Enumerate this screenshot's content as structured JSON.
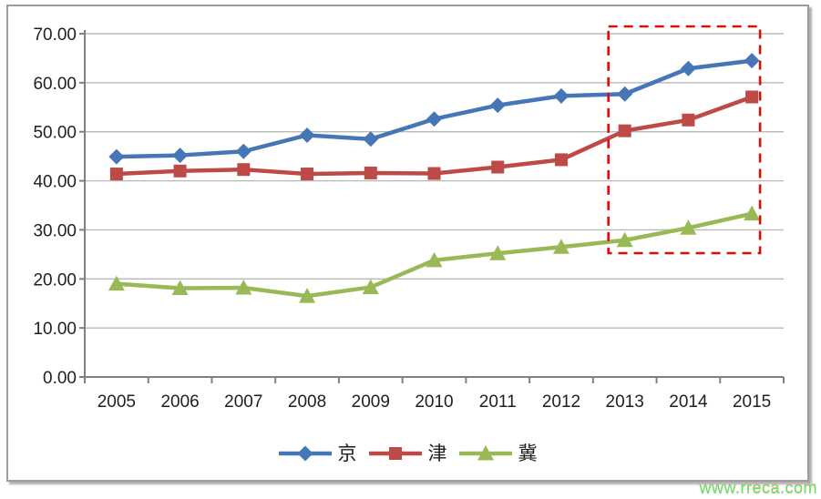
{
  "watermark": {
    "text": "www.rreca.com",
    "color": "#5fe45f"
  },
  "legend": {
    "items": [
      {
        "label": "京",
        "marker": "diamond"
      },
      {
        "label": "津",
        "marker": "square"
      },
      {
        "label": "冀",
        "marker": "triangle"
      }
    ]
  },
  "chart_data": {
    "type": "line",
    "title": "",
    "xlabel": "",
    "ylabel": "",
    "categories": [
      "2005",
      "2006",
      "2007",
      "2008",
      "2009",
      "2010",
      "2011",
      "2012",
      "2013",
      "2014",
      "2015"
    ],
    "series": [
      {
        "name": "京",
        "color": "#4576b5",
        "marker": "diamond",
        "values": [
          44.9,
          45.2,
          46.0,
          49.3,
          48.5,
          52.6,
          55.4,
          57.3,
          57.7,
          62.9,
          64.5
        ]
      },
      {
        "name": "津",
        "color": "#be4a47",
        "marker": "square",
        "values": [
          41.4,
          42.0,
          42.3,
          41.4,
          41.6,
          41.5,
          42.8,
          44.3,
          50.2,
          52.4,
          57.1
        ]
      },
      {
        "name": "冀",
        "color": "#99b956",
        "marker": "triangle",
        "values": [
          19.0,
          18.1,
          18.2,
          16.5,
          18.3,
          23.8,
          25.2,
          26.5,
          27.9,
          30.4,
          33.3
        ]
      }
    ],
    "ylim": [
      0,
      70
    ],
    "ytick_step": 10,
    "ytick_labels": [
      "0.00",
      "10.00",
      "20.00",
      "30.00",
      "40.00",
      "50.00",
      "60.00",
      "70.00"
    ],
    "grid": true,
    "legend_position": "bottom",
    "colors": {
      "gridline": "#b9b9b9",
      "axis": "#808080",
      "tick_text": "#1f1f1f"
    },
    "highlight_box": {
      "shape": "dashed-rectangle",
      "color": "#e00c0c",
      "covers_years": [
        "2013",
        "2014",
        "2015"
      ]
    }
  }
}
